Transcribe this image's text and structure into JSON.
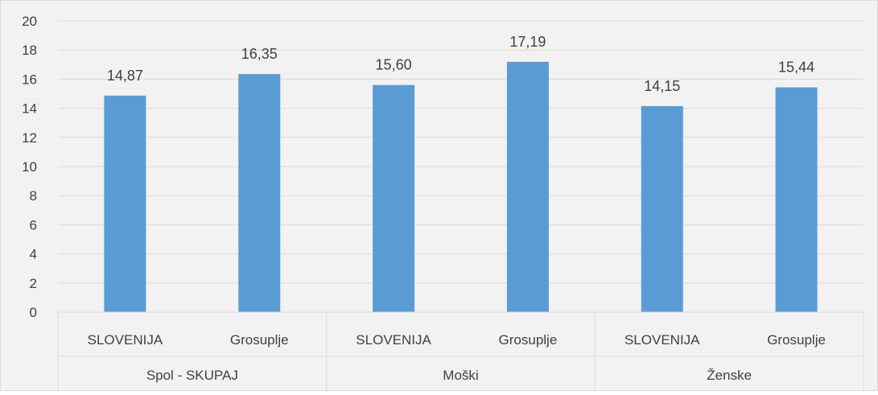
{
  "chart_data": {
    "type": "bar",
    "groups": [
      {
        "label": "Spol - SKUPAJ",
        "categories": [
          "SLOVENIJA",
          "Grosuplje"
        ],
        "values": [
          14.87,
          16.35
        ],
        "value_labels": [
          "14,87",
          "16,35"
        ]
      },
      {
        "label": "Moški",
        "categories": [
          "SLOVENIJA",
          "Grosuplje"
        ],
        "values": [
          15.6,
          17.19
        ],
        "value_labels": [
          "15,60",
          "17,19"
        ]
      },
      {
        "label": "Ženske",
        "categories": [
          "SLOVENIJA",
          "Grosuplje"
        ],
        "values": [
          14.15,
          15.44
        ],
        "value_labels": [
          "14,15",
          "15,44"
        ]
      }
    ],
    "ylim": [
      0,
      20
    ],
    "yticks": [
      "0",
      "2",
      "4",
      "6",
      "8",
      "10",
      "12",
      "14",
      "16",
      "18",
      "20"
    ],
    "grid": true,
    "title": "",
    "xlabel": "",
    "ylabel": ""
  },
  "colors": {
    "background": "#f2f2f2",
    "bar": "#5b9bd5",
    "grid": "#d9d9d9",
    "text": "#404040",
    "border": "#d9d9d9"
  }
}
